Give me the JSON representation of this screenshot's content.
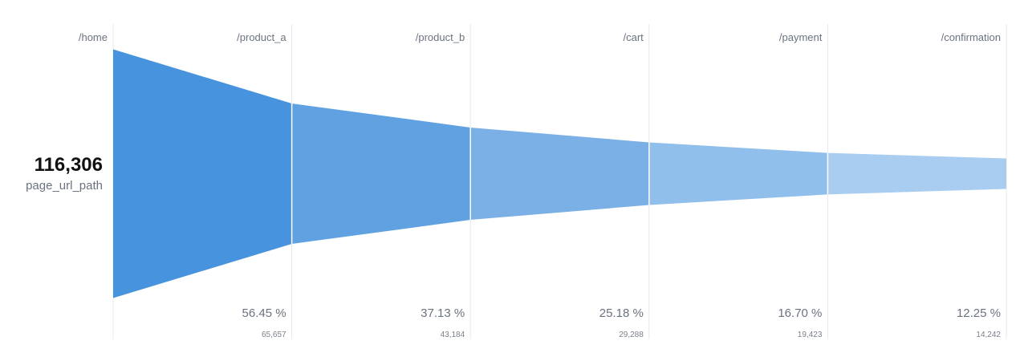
{
  "summary": {
    "total": "116,306",
    "field": "page_url_path"
  },
  "colors": {
    "segments": [
      "#4893dd",
      "#60a1e1",
      "#7ab0e6",
      "#90bfec",
      "#a8cdf0"
    ],
    "divider": "#e6e8eb"
  },
  "chart_data": {
    "type": "funnel",
    "steps": [
      "/home",
      "/product_a",
      "/product_b",
      "/cart",
      "/payment",
      "/confirmation"
    ],
    "values": [
      116306,
      65657,
      43184,
      29288,
      19423,
      14242
    ],
    "value_labels": [
      "",
      "65,657",
      "43,184",
      "29,288",
      "19,423",
      "14,242"
    ],
    "percent_labels": [
      "",
      "56.45 %",
      "37.13 %",
      "25.18 %",
      "16.70 %",
      "12.25 %"
    ]
  }
}
